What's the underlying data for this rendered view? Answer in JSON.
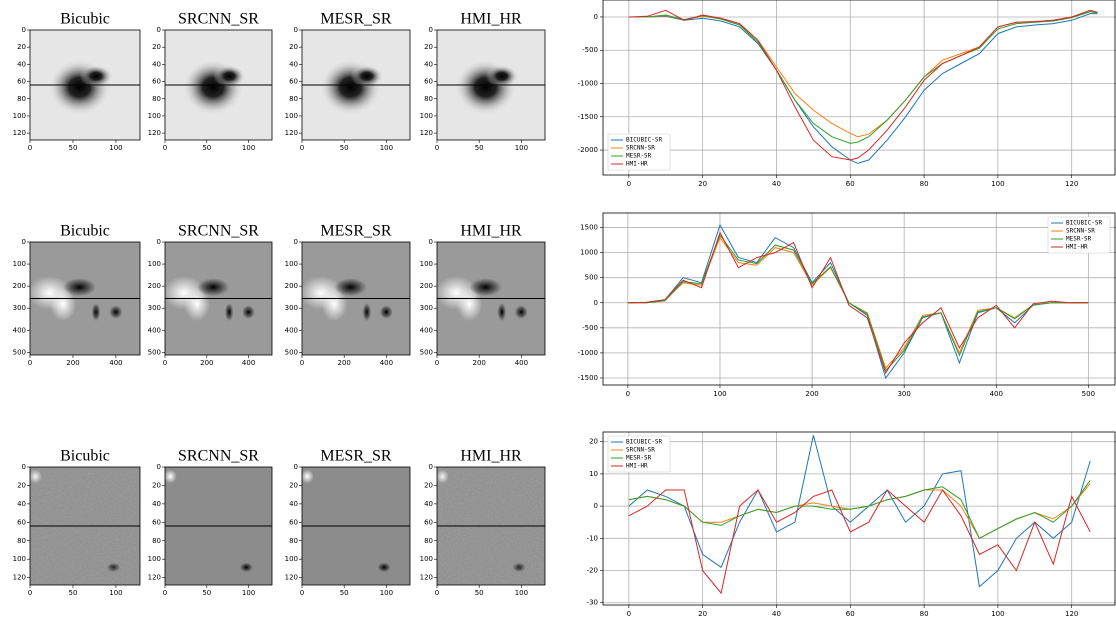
{
  "figure_panels": [
    {
      "titles": [
        "Bicubic",
        "SRCNN_SR",
        "MESR_SR",
        "HMI_HR"
      ],
      "xlim": [
        0,
        128
      ],
      "ylim": [
        0,
        128
      ],
      "xticks": [
        0,
        50,
        100
      ],
      "yticks": [
        0,
        20,
        40,
        60,
        80,
        100,
        120
      ]
    },
    {
      "titles": [
        "Bicubic",
        "SRCNN_SR",
        "MESR_SR",
        "HMI_HR"
      ],
      "xlim": [
        0,
        512
      ],
      "ylim": [
        0,
        512
      ],
      "xticks": [
        0,
        200,
        400
      ],
      "yticks": [
        0,
        100,
        200,
        300,
        400,
        500
      ]
    },
    {
      "titles": [
        "Bicubic",
        "SRCNN_SR",
        "MESR_SR",
        "HMI_HR"
      ],
      "xlim": [
        0,
        128
      ],
      "ylim": [
        0,
        128
      ],
      "xticks": [
        0,
        50,
        100
      ],
      "yticks": [
        0,
        20,
        40,
        60,
        80,
        100,
        120
      ]
    }
  ],
  "chart_data": [
    {
      "type": "line",
      "legend": "lower left",
      "grid": true,
      "x": [
        0,
        5,
        10,
        15,
        20,
        25,
        30,
        35,
        40,
        45,
        50,
        55,
        60,
        62,
        65,
        70,
        75,
        80,
        85,
        90,
        95,
        100,
        105,
        110,
        115,
        120,
        125,
        127
      ],
      "xlim": [
        -7,
        132
      ],
      "ylim": [
        -2375,
        255
      ],
      "xticks": [
        0,
        20,
        40,
        60,
        80,
        100,
        120
      ],
      "yticks": [
        0,
        -500,
        -1000,
        -1500,
        -2000
      ],
      "series": [
        {
          "name": "BICUBIC-SR",
          "color": "#1f77b4",
          "values": [
            0,
            0,
            10,
            -50,
            -20,
            -60,
            -150,
            -400,
            -800,
            -1250,
            -1650,
            -1950,
            -2150,
            -2200,
            -2150,
            -1850,
            -1500,
            -1100,
            -850,
            -700,
            -550,
            -250,
            -150,
            -120,
            -100,
            -50,
            50,
            50
          ]
        },
        {
          "name": "SRCNN-SR",
          "color": "#ff7f0e",
          "values": [
            0,
            0,
            20,
            -40,
            10,
            -30,
            -120,
            -350,
            -750,
            -1150,
            -1400,
            -1600,
            -1750,
            -1800,
            -1760,
            -1550,
            -1250,
            -900,
            -650,
            -550,
            -450,
            -150,
            -80,
            -70,
            -50,
            0,
            80,
            60
          ]
        },
        {
          "name": "MESR-SR",
          "color": "#2ca02c",
          "values": [
            0,
            0,
            30,
            -40,
            20,
            -30,
            -120,
            -380,
            -800,
            -1250,
            -1600,
            -1800,
            -1900,
            -1880,
            -1800,
            -1550,
            -1250,
            -900,
            -700,
            -580,
            -470,
            -180,
            -100,
            -80,
            -60,
            -10,
            80,
            60
          ]
        },
        {
          "name": "HMI-HR",
          "color": "#d62728",
          "values": [
            0,
            10,
            100,
            -50,
            30,
            -20,
            -100,
            -350,
            -800,
            -1350,
            -1850,
            -2100,
            -2150,
            -2120,
            -2000,
            -1700,
            -1350,
            -950,
            -700,
            -580,
            -450,
            -150,
            -80,
            -70,
            -50,
            0,
            100,
            70
          ]
        }
      ]
    },
    {
      "type": "line",
      "legend": "upper right",
      "grid": true,
      "x": [
        0,
        20,
        40,
        60,
        80,
        100,
        120,
        140,
        160,
        180,
        200,
        220,
        240,
        260,
        280,
        300,
        320,
        340,
        360,
        380,
        400,
        420,
        440,
        460,
        480,
        500
      ],
      "xlim": [
        -27,
        530
      ],
      "ylim": [
        -1640,
        1790
      ],
      "xticks": [
        0,
        100,
        200,
        300,
        400,
        500
      ],
      "yticks": [
        1500,
        1000,
        500,
        0,
        -500,
        -1000,
        -1500
      ],
      "series": [
        {
          "name": "BICUBIC-SR",
          "color": "#1f77b4",
          "values": [
            0,
            0,
            50,
            500,
            400,
            1550,
            900,
            800,
            1300,
            1100,
            400,
            800,
            0,
            -250,
            -1500,
            -1000,
            -300,
            -200,
            -1200,
            -200,
            -100,
            -400,
            -50,
            0,
            0,
            0
          ]
        },
        {
          "name": "SRCNN-SR",
          "color": "#ff7f0e",
          "values": [
            0,
            0,
            40,
            400,
            350,
            1300,
            800,
            750,
            1100,
            1000,
            350,
            700,
            0,
            -200,
            -1300,
            -900,
            -250,
            -200,
            -1000,
            -150,
            -100,
            -300,
            -40,
            0,
            0,
            0
          ]
        },
        {
          "name": "MESR-SR",
          "color": "#2ca02c",
          "values": [
            0,
            0,
            40,
            420,
            380,
            1350,
            850,
            780,
            1150,
            1050,
            380,
            720,
            0,
            -220,
            -1350,
            -950,
            -280,
            -200,
            -1050,
            -180,
            -100,
            -320,
            -40,
            0,
            0,
            0
          ]
        },
        {
          "name": "HMI-HR",
          "color": "#d62728",
          "values": [
            0,
            10,
            60,
            450,
            300,
            1400,
            700,
            900,
            1000,
            1200,
            300,
            900,
            -50,
            -300,
            -1400,
            -800,
            -400,
            -100,
            -900,
            -300,
            -50,
            -500,
            -20,
            30,
            0,
            0
          ]
        }
      ]
    },
    {
      "type": "line",
      "legend": "upper left",
      "grid": true,
      "x": [
        0,
        5,
        10,
        15,
        20,
        25,
        30,
        35,
        40,
        45,
        50,
        55,
        60,
        65,
        70,
        75,
        80,
        85,
        90,
        95,
        100,
        105,
        110,
        115,
        120,
        125
      ],
      "xlim": [
        -7,
        132
      ],
      "ylim": [
        -30.7,
        23
      ],
      "xticks": [
        0,
        20,
        40,
        60,
        80,
        100,
        120
      ],
      "yticks": [
        20,
        10,
        0,
        -10,
        -20,
        -30
      ],
      "series": [
        {
          "name": "BICUBIC-SR",
          "color": "#1f77b4",
          "values": [
            0,
            5,
            3,
            0,
            -15,
            -19,
            -5,
            5,
            -8,
            -5,
            22,
            0,
            -5,
            0,
            5,
            -5,
            0,
            10,
            11,
            -25,
            -20,
            -10,
            -5,
            -10,
            -5,
            14
          ]
        },
        {
          "name": "SRCNN-SR",
          "color": "#ff7f0e",
          "values": [
            2,
            3,
            2,
            0,
            -5,
            -5,
            -3,
            -1,
            -2,
            0,
            1,
            0,
            -1,
            0,
            2,
            3,
            5,
            5,
            0,
            -10,
            -7,
            -4,
            -2,
            -4,
            0,
            7
          ]
        },
        {
          "name": "MESR-SR",
          "color": "#2ca02c",
          "values": [
            2,
            3,
            2,
            0,
            -5,
            -6,
            -3,
            -1,
            -2,
            0,
            0,
            -1,
            -1,
            0,
            2,
            3,
            5,
            6,
            2,
            -10,
            -7,
            -4,
            -2,
            -5,
            0,
            8
          ]
        },
        {
          "name": "HMI-HR",
          "color": "#d62728",
          "values": [
            -3,
            0,
            5,
            5,
            -20,
            -27,
            0,
            5,
            -5,
            -2,
            3,
            5,
            -8,
            -5,
            5,
            0,
            -5,
            5,
            -3,
            -15,
            -12,
            -20,
            -5,
            -18,
            3,
            -8
          ]
        }
      ]
    }
  ]
}
